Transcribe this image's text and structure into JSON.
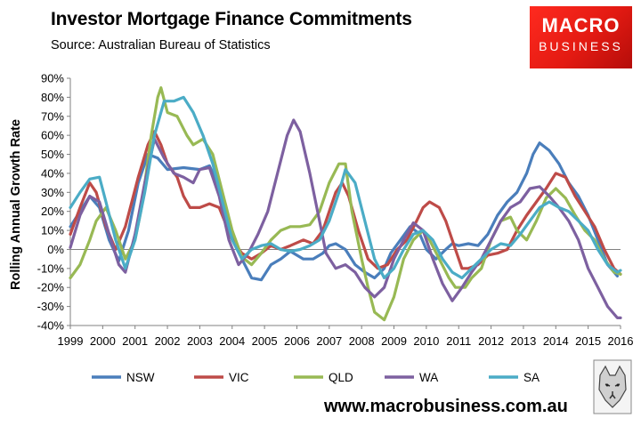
{
  "header": {
    "title": "Investor Mortgage Finance Commitments",
    "subtitle": "Source: Australian Bureau of Statistics"
  },
  "logo": {
    "line1": "MACRO",
    "line2": "BUSINESS",
    "bg_color": "#e31a12"
  },
  "footer": {
    "website": "www.macrobusiness.com.au",
    "seal_icon": "wolf-seal-icon"
  },
  "chart_data": {
    "type": "line",
    "title": "Investor Mortgage Finance Commitments",
    "ylabel": "Rolling Annual Growth Rate",
    "xlabel": "",
    "xlim": [
      1999,
      2016
    ],
    "ylim": [
      -40,
      90
    ],
    "yticks": [
      "-40%",
      "-30%",
      "-20%",
      "-10%",
      "0%",
      "10%",
      "20%",
      "30%",
      "40%",
      "50%",
      "60%",
      "70%",
      "80%",
      "90%"
    ],
    "xticks": [
      "1999",
      "2000",
      "2001",
      "2002",
      "2003",
      "2004",
      "2005",
      "2006",
      "2007",
      "2008",
      "2009",
      "2010",
      "2011",
      "2012",
      "2013",
      "2014",
      "2015",
      "2016"
    ],
    "grid": false,
    "legend": "bottom",
    "series": [
      {
        "name": "NSW",
        "color": "#4a7ebb",
        "points": [
          [
            1999,
            12
          ],
          [
            1999.3,
            20
          ],
          [
            1999.6,
            28
          ],
          [
            1999.9,
            22
          ],
          [
            2000.2,
            5
          ],
          [
            2000.5,
            -6
          ],
          [
            2000.8,
            10
          ],
          [
            2001.1,
            35
          ],
          [
            2001.4,
            50
          ],
          [
            2001.7,
            48
          ],
          [
            2002,
            42
          ],
          [
            2002.5,
            43
          ],
          [
            2003,
            42
          ],
          [
            2003.3,
            44
          ],
          [
            2003.6,
            33
          ],
          [
            2004,
            8
          ],
          [
            2004.3,
            -5
          ],
          [
            2004.6,
            -15
          ],
          [
            2004.9,
            -16
          ],
          [
            2005.2,
            -8
          ],
          [
            2005.5,
            -5
          ],
          [
            2005.8,
            -1
          ],
          [
            2006.2,
            -5
          ],
          [
            2006.5,
            -5
          ],
          [
            2006.8,
            -2
          ],
          [
            2007,
            2
          ],
          [
            2007.2,
            3
          ],
          [
            2007.5,
            0
          ],
          [
            2007.8,
            -8
          ],
          [
            2008.1,
            -12
          ],
          [
            2008.4,
            -15
          ],
          [
            2008.7,
            -10
          ],
          [
            2008.9,
            -2
          ],
          [
            2009.2,
            5
          ],
          [
            2009.5,
            12
          ],
          [
            2009.8,
            8
          ],
          [
            2010,
            0
          ],
          [
            2010.3,
            -5
          ],
          [
            2010.6,
            0
          ],
          [
            2010.8,
            3
          ],
          [
            2011,
            2
          ],
          [
            2011.3,
            3
          ],
          [
            2011.6,
            2
          ],
          [
            2011.9,
            8
          ],
          [
            2012.2,
            18
          ],
          [
            2012.5,
            25
          ],
          [
            2012.8,
            30
          ],
          [
            2013.1,
            40
          ],
          [
            2013.3,
            50
          ],
          [
            2013.5,
            56
          ],
          [
            2013.8,
            52
          ],
          [
            2014.1,
            45
          ],
          [
            2014.4,
            35
          ],
          [
            2014.7,
            28
          ],
          [
            2015,
            18
          ],
          [
            2015.3,
            5
          ],
          [
            2015.6,
            -8
          ],
          [
            2015.9,
            -14
          ]
        ]
      },
      {
        "name": "VIC",
        "color": "#be4b48",
        "points": [
          [
            1999,
            8
          ],
          [
            1999.3,
            22
          ],
          [
            1999.6,
            35
          ],
          [
            1999.8,
            30
          ],
          [
            2000.1,
            12
          ],
          [
            2000.4,
            0
          ],
          [
            2000.7,
            12
          ],
          [
            2001.1,
            38
          ],
          [
            2001.4,
            55
          ],
          [
            2001.6,
            62
          ],
          [
            2001.8,
            55
          ],
          [
            2002,
            45
          ],
          [
            2002.3,
            38
          ],
          [
            2002.5,
            28
          ],
          [
            2002.7,
            22
          ],
          [
            2003,
            22
          ],
          [
            2003.3,
            24
          ],
          [
            2003.6,
            22
          ],
          [
            2004,
            5
          ],
          [
            2004.3,
            -2
          ],
          [
            2004.6,
            -5
          ],
          [
            2004.9,
            -2
          ],
          [
            2005.2,
            2
          ],
          [
            2005.5,
            0
          ],
          [
            2005.8,
            2
          ],
          [
            2006.2,
            5
          ],
          [
            2006.5,
            3
          ],
          [
            2006.8,
            10
          ],
          [
            2007,
            20
          ],
          [
            2007.2,
            30
          ],
          [
            2007.4,
            35
          ],
          [
            2007.6,
            28
          ],
          [
            2007.9,
            10
          ],
          [
            2008.2,
            -5
          ],
          [
            2008.5,
            -10
          ],
          [
            2008.8,
            -8
          ],
          [
            2009.1,
            0
          ],
          [
            2009.4,
            5
          ],
          [
            2009.7,
            15
          ],
          [
            2009.9,
            22
          ],
          [
            2010.1,
            25
          ],
          [
            2010.4,
            22
          ],
          [
            2010.6,
            15
          ],
          [
            2010.9,
            0
          ],
          [
            2011.1,
            -10
          ],
          [
            2011.3,
            -10
          ],
          [
            2011.6,
            -8
          ],
          [
            2011.9,
            -3
          ],
          [
            2012.2,
            -2
          ],
          [
            2012.5,
            0
          ],
          [
            2012.8,
            10
          ],
          [
            2013.1,
            18
          ],
          [
            2013.4,
            25
          ],
          [
            2013.7,
            32
          ],
          [
            2014,
            40
          ],
          [
            2014.3,
            38
          ],
          [
            2014.6,
            28
          ],
          [
            2014.9,
            20
          ],
          [
            2015.2,
            12
          ],
          [
            2015.5,
            0
          ],
          [
            2015.8,
            -10
          ],
          [
            2016,
            -13
          ]
        ]
      },
      {
        "name": "QLD",
        "color": "#98b954",
        "points": [
          [
            1999,
            -15
          ],
          [
            1999.3,
            -8
          ],
          [
            1999.6,
            5
          ],
          [
            1999.8,
            15
          ],
          [
            2000.1,
            22
          ],
          [
            2000.4,
            10
          ],
          [
            2000.7,
            -5
          ],
          [
            2001,
            5
          ],
          [
            2001.2,
            22
          ],
          [
            2001.5,
            60
          ],
          [
            2001.7,
            80
          ],
          [
            2001.8,
            85
          ],
          [
            2002,
            72
          ],
          [
            2002.3,
            70
          ],
          [
            2002.6,
            60
          ],
          [
            2002.8,
            55
          ],
          [
            2003.1,
            58
          ],
          [
            2003.4,
            50
          ],
          [
            2003.7,
            30
          ],
          [
            2004,
            10
          ],
          [
            2004.3,
            -4
          ],
          [
            2004.6,
            -8
          ],
          [
            2004.9,
            -2
          ],
          [
            2005.2,
            5
          ],
          [
            2005.5,
            10
          ],
          [
            2005.8,
            12
          ],
          [
            2006.1,
            12
          ],
          [
            2006.4,
            13
          ],
          [
            2006.7,
            20
          ],
          [
            2007,
            35
          ],
          [
            2007.3,
            45
          ],
          [
            2007.5,
            45
          ],
          [
            2007.7,
            20
          ],
          [
            2008,
            -5
          ],
          [
            2008.2,
            -20
          ],
          [
            2008.4,
            -33
          ],
          [
            2008.7,
            -37
          ],
          [
            2009,
            -25
          ],
          [
            2009.3,
            -5
          ],
          [
            2009.6,
            5
          ],
          [
            2009.9,
            10
          ],
          [
            2010.1,
            5
          ],
          [
            2010.4,
            -5
          ],
          [
            2010.7,
            -15
          ],
          [
            2010.9,
            -20
          ],
          [
            2011.2,
            -20
          ],
          [
            2011.4,
            -15
          ],
          [
            2011.7,
            -10
          ],
          [
            2012,
            5
          ],
          [
            2012.3,
            15
          ],
          [
            2012.6,
            17
          ],
          [
            2012.8,
            10
          ],
          [
            2013.1,
            5
          ],
          [
            2013.4,
            15
          ],
          [
            2013.7,
            27
          ],
          [
            2014,
            32
          ],
          [
            2014.3,
            27
          ],
          [
            2014.6,
            18
          ],
          [
            2014.9,
            10
          ],
          [
            2015.2,
            5
          ],
          [
            2015.5,
            -5
          ],
          [
            2015.8,
            -12
          ],
          [
            2016,
            -13
          ]
        ]
      },
      {
        "name": "WA",
        "color": "#7d60a0",
        "points": [
          [
            1999,
            1
          ],
          [
            1999.3,
            18
          ],
          [
            1999.6,
            28
          ],
          [
            1999.9,
            25
          ],
          [
            2000.2,
            8
          ],
          [
            2000.5,
            -8
          ],
          [
            2000.7,
            -12
          ],
          [
            2001,
            8
          ],
          [
            2001.3,
            35
          ],
          [
            2001.6,
            58
          ],
          [
            2001.9,
            48
          ],
          [
            2002.2,
            40
          ],
          [
            2002.5,
            38
          ],
          [
            2002.8,
            35
          ],
          [
            2003,
            42
          ],
          [
            2003.3,
            43
          ],
          [
            2003.6,
            28
          ],
          [
            2003.9,
            5
          ],
          [
            2004.2,
            -8
          ],
          [
            2004.5,
            -2
          ],
          [
            2004.8,
            8
          ],
          [
            2005.1,
            20
          ],
          [
            2005.4,
            40
          ],
          [
            2005.7,
            60
          ],
          [
            2005.9,
            68
          ],
          [
            2006.1,
            62
          ],
          [
            2006.4,
            40
          ],
          [
            2006.7,
            15
          ],
          [
            2006.9,
            -2
          ],
          [
            2007.2,
            -10
          ],
          [
            2007.5,
            -8
          ],
          [
            2007.8,
            -12
          ],
          [
            2008.1,
            -20
          ],
          [
            2008.4,
            -25
          ],
          [
            2008.7,
            -20
          ],
          [
            2009,
            -5
          ],
          [
            2009.3,
            5
          ],
          [
            2009.6,
            14
          ],
          [
            2009.9,
            10
          ],
          [
            2010.2,
            -5
          ],
          [
            2010.5,
            -18
          ],
          [
            2010.8,
            -27
          ],
          [
            2011.1,
            -20
          ],
          [
            2011.4,
            -12
          ],
          [
            2011.7,
            -5
          ],
          [
            2012,
            5
          ],
          [
            2012.3,
            15
          ],
          [
            2012.6,
            22
          ],
          [
            2012.9,
            25
          ],
          [
            2013.2,
            32
          ],
          [
            2013.5,
            33
          ],
          [
            2013.8,
            28
          ],
          [
            2014.1,
            22
          ],
          [
            2014.4,
            15
          ],
          [
            2014.7,
            5
          ],
          [
            2015,
            -10
          ],
          [
            2015.3,
            -20
          ],
          [
            2015.6,
            -30
          ],
          [
            2015.9,
            -36
          ],
          [
            2016,
            -36
          ]
        ]
      },
      {
        "name": "SA",
        "color": "#4bacc6",
        "points": [
          [
            1999,
            22
          ],
          [
            1999.3,
            30
          ],
          [
            1999.6,
            37
          ],
          [
            1999.9,
            38
          ],
          [
            2000.1,
            25
          ],
          [
            2000.4,
            5
          ],
          [
            2000.7,
            -10
          ],
          [
            2001,
            5
          ],
          [
            2001.3,
            30
          ],
          [
            2001.6,
            60
          ],
          [
            2001.9,
            78
          ],
          [
            2002.2,
            78
          ],
          [
            2002.5,
            80
          ],
          [
            2002.8,
            72
          ],
          [
            2003.1,
            60
          ],
          [
            2003.4,
            45
          ],
          [
            2003.7,
            25
          ],
          [
            2004,
            5
          ],
          [
            2004.3,
            -5
          ],
          [
            2004.6,
            0
          ],
          [
            2004.9,
            2
          ],
          [
            2005.2,
            3
          ],
          [
            2005.5,
            0
          ],
          [
            2005.8,
            -1
          ],
          [
            2006.1,
            0
          ],
          [
            2006.4,
            2
          ],
          [
            2006.7,
            5
          ],
          [
            2007,
            15
          ],
          [
            2007.3,
            30
          ],
          [
            2007.5,
            42
          ],
          [
            2007.8,
            35
          ],
          [
            2008.1,
            15
          ],
          [
            2008.4,
            -5
          ],
          [
            2008.7,
            -15
          ],
          [
            2009,
            -10
          ],
          [
            2009.3,
            0
          ],
          [
            2009.6,
            8
          ],
          [
            2009.9,
            10
          ],
          [
            2010.2,
            5
          ],
          [
            2010.5,
            -5
          ],
          [
            2010.8,
            -12
          ],
          [
            2011.1,
            -15
          ],
          [
            2011.4,
            -10
          ],
          [
            2011.7,
            -5
          ],
          [
            2012,
            0
          ],
          [
            2012.3,
            3
          ],
          [
            2012.6,
            2
          ],
          [
            2012.9,
            8
          ],
          [
            2013.2,
            15
          ],
          [
            2013.5,
            22
          ],
          [
            2013.8,
            25
          ],
          [
            2014.1,
            22
          ],
          [
            2014.4,
            20
          ],
          [
            2014.7,
            15
          ],
          [
            2015,
            10
          ],
          [
            2015.3,
            0
          ],
          [
            2015.6,
            -8
          ],
          [
            2015.9,
            -12
          ],
          [
            2016,
            -11
          ]
        ]
      }
    ]
  }
}
